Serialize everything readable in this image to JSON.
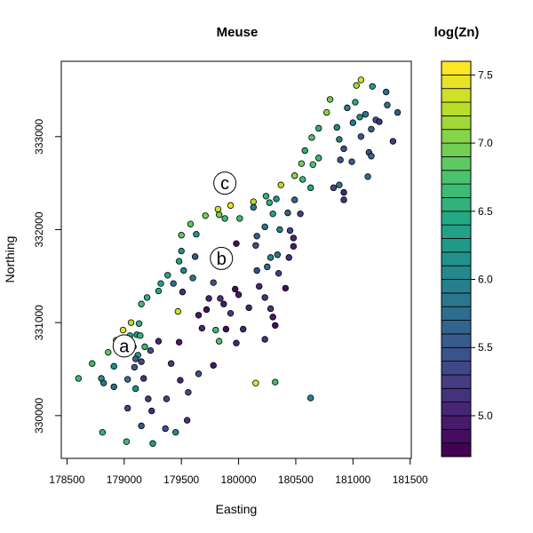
{
  "chart_data": {
    "type": "scatter",
    "title": "Meuse",
    "xlabel": "Easting",
    "ylabel": "Northing",
    "xlim": [
      178450,
      181510
    ],
    "ylim": [
      329540,
      333810
    ],
    "xticks": [
      {
        "value": 178500,
        "label": "178500"
      },
      {
        "value": 179000,
        "label": "179000"
      },
      {
        "value": 179500,
        "label": "179500"
      },
      {
        "value": 180000,
        "label": "180000"
      },
      {
        "value": 180500,
        "label": "180500"
      },
      {
        "value": 181000,
        "label": "181000"
      },
      {
        "value": 181500,
        "label": "181500"
      }
    ],
    "yticks": [
      {
        "value": 330000,
        "label": "330000"
      },
      {
        "value": 331000,
        "label": "331000"
      },
      {
        "value": 332000,
        "label": "332000"
      },
      {
        "value": 333000,
        "label": "333000"
      }
    ],
    "colorbar": {
      "title": "log(Zn)",
      "range": [
        4.7,
        7.6
      ],
      "breaks": [
        4.7,
        4.8,
        4.9,
        5.0,
        5.1,
        5.2,
        5.3,
        5.4,
        5.5,
        5.6,
        5.7,
        5.8,
        5.9,
        6.0,
        6.1,
        6.2,
        6.3,
        6.4,
        6.5,
        6.6,
        6.7,
        6.8,
        6.9,
        7.0,
        7.1,
        7.2,
        7.3,
        7.4,
        7.5,
        7.6
      ],
      "ticks": [
        {
          "value": 5.0,
          "label": "5.0"
        },
        {
          "value": 5.5,
          "label": "5.5"
        },
        {
          "value": 6.0,
          "label": "6.0"
        },
        {
          "value": 6.5,
          "label": "6.5"
        },
        {
          "value": 7.0,
          "label": "7.0"
        },
        {
          "value": 7.5,
          "label": "7.5"
        }
      ]
    },
    "annotations": [
      {
        "text": "a",
        "x": 179000,
        "y": 330750
      },
      {
        "text": "b",
        "x": 179850,
        "y": 331690
      },
      {
        "text": "c",
        "x": 179880,
        "y": 332500
      }
    ],
    "points": [
      {
        "x": 181070,
        "y": 333610,
        "z": 7.3
      },
      {
        "x": 181030,
        "y": 333550,
        "z": 7.1
      },
      {
        "x": 181170,
        "y": 333540,
        "z": 6.2
      },
      {
        "x": 181290,
        "y": 333480,
        "z": 5.7
      },
      {
        "x": 180800,
        "y": 333400,
        "z": 6.9
      },
      {
        "x": 181020,
        "y": 333370,
        "z": 6.4
      },
      {
        "x": 180950,
        "y": 333310,
        "z": 5.9
      },
      {
        "x": 181300,
        "y": 333340,
        "z": 5.8
      },
      {
        "x": 181390,
        "y": 333260,
        "z": 5.5
      },
      {
        "x": 180770,
        "y": 333260,
        "z": 7.0
      },
      {
        "x": 181110,
        "y": 333240,
        "z": 5.8
      },
      {
        "x": 181060,
        "y": 333210,
        "z": 6.0
      },
      {
        "x": 181000,
        "y": 333150,
        "z": 5.8
      },
      {
        "x": 181200,
        "y": 333180,
        "z": 5.4
      },
      {
        "x": 181230,
        "y": 333160,
        "z": 5.1
      },
      {
        "x": 180700,
        "y": 333090,
        "z": 6.5
      },
      {
        "x": 180860,
        "y": 333100,
        "z": 6.0
      },
      {
        "x": 181160,
        "y": 333080,
        "z": 5.6
      },
      {
        "x": 181070,
        "y": 333000,
        "z": 5.5
      },
      {
        "x": 180640,
        "y": 332990,
        "z": 6.7
      },
      {
        "x": 180880,
        "y": 332970,
        "z": 5.9
      },
      {
        "x": 181350,
        "y": 332950,
        "z": 5.2
      },
      {
        "x": 180580,
        "y": 332850,
        "z": 6.5
      },
      {
        "x": 180920,
        "y": 332870,
        "z": 5.4
      },
      {
        "x": 181140,
        "y": 332830,
        "z": 5.4
      },
      {
        "x": 181160,
        "y": 332790,
        "z": 5.6
      },
      {
        "x": 180700,
        "y": 332770,
        "z": 6.6
      },
      {
        "x": 180550,
        "y": 332710,
        "z": 6.9
      },
      {
        "x": 180650,
        "y": 332700,
        "z": 6.7
      },
      {
        "x": 180890,
        "y": 332750,
        "z": 5.5
      },
      {
        "x": 180990,
        "y": 332730,
        "z": 5.5
      },
      {
        "x": 180490,
        "y": 332580,
        "z": 7.0
      },
      {
        "x": 180560,
        "y": 332540,
        "z": 6.6
      },
      {
        "x": 181130,
        "y": 332570,
        "z": 5.7
      },
      {
        "x": 180370,
        "y": 332480,
        "z": 7.2
      },
      {
        "x": 180630,
        "y": 332450,
        "z": 6.4
      },
      {
        "x": 180830,
        "y": 332450,
        "z": 5.3
      },
      {
        "x": 180880,
        "y": 332480,
        "z": 5.8
      },
      {
        "x": 180920,
        "y": 332400,
        "z": 5.0
      },
      {
        "x": 180240,
        "y": 332360,
        "z": 6.5
      },
      {
        "x": 180330,
        "y": 332330,
        "z": 6.1
      },
      {
        "x": 180490,
        "y": 332320,
        "z": 5.6
      },
      {
        "x": 180130,
        "y": 332300,
        "z": 7.2
      },
      {
        "x": 180270,
        "y": 332290,
        "z": 6.5
      },
      {
        "x": 180920,
        "y": 332320,
        "z": 5.1
      },
      {
        "x": 179930,
        "y": 332260,
        "z": 7.4
      },
      {
        "x": 180130,
        "y": 332240,
        "z": 5.9
      },
      {
        "x": 179820,
        "y": 332220,
        "z": 7.3
      },
      {
        "x": 180430,
        "y": 332180,
        "z": 5.6
      },
      {
        "x": 180300,
        "y": 332170,
        "z": 6.3
      },
      {
        "x": 179830,
        "y": 332160,
        "z": 6.9
      },
      {
        "x": 179880,
        "y": 332120,
        "z": 6.6
      },
      {
        "x": 179710,
        "y": 332150,
        "z": 6.9
      },
      {
        "x": 180010,
        "y": 332120,
        "z": 6.6
      },
      {
        "x": 180540,
        "y": 332170,
        "z": 5.2
      },
      {
        "x": 179580,
        "y": 332060,
        "z": 6.8
      },
      {
        "x": 180230,
        "y": 332030,
        "z": 5.8
      },
      {
        "x": 180360,
        "y": 332000,
        "z": 5.9
      },
      {
        "x": 180450,
        "y": 331990,
        "z": 5.3
      },
      {
        "x": 179500,
        "y": 331940,
        "z": 6.8
      },
      {
        "x": 179630,
        "y": 331950,
        "z": 6.1
      },
      {
        "x": 180160,
        "y": 331930,
        "z": 5.5
      },
      {
        "x": 180480,
        "y": 331910,
        "z": 5.0
      },
      {
        "x": 179980,
        "y": 331850,
        "z": 4.8
      },
      {
        "x": 180480,
        "y": 331820,
        "z": 4.9
      },
      {
        "x": 180150,
        "y": 331830,
        "z": 5.4
      },
      {
        "x": 179500,
        "y": 331770,
        "z": 6.1
      },
      {
        "x": 179620,
        "y": 331710,
        "z": 5.5
      },
      {
        "x": 180280,
        "y": 331700,
        "z": 6.0
      },
      {
        "x": 180340,
        "y": 331730,
        "z": 5.8
      },
      {
        "x": 180440,
        "y": 331700,
        "z": 5.1
      },
      {
        "x": 179480,
        "y": 331660,
        "z": 6.3
      },
      {
        "x": 179520,
        "y": 331560,
        "z": 6.0
      },
      {
        "x": 180160,
        "y": 331560,
        "z": 5.3
      },
      {
        "x": 180250,
        "y": 331600,
        "z": 5.7
      },
      {
        "x": 179380,
        "y": 331510,
        "z": 6.4
      },
      {
        "x": 179600,
        "y": 331480,
        "z": 5.8
      },
      {
        "x": 180350,
        "y": 331530,
        "z": 5.2
      },
      {
        "x": 179320,
        "y": 331420,
        "z": 6.3
      },
      {
        "x": 179430,
        "y": 331420,
        "z": 5.7
      },
      {
        "x": 179780,
        "y": 331430,
        "z": 5.4
      },
      {
        "x": 179300,
        "y": 331340,
        "z": 6.4
      },
      {
        "x": 179510,
        "y": 331330,
        "z": 5.1
      },
      {
        "x": 179970,
        "y": 331360,
        "z": 4.8
      },
      {
        "x": 180180,
        "y": 331390,
        "z": 5.0
      },
      {
        "x": 180410,
        "y": 331370,
        "z": 4.8
      },
      {
        "x": 179200,
        "y": 331270,
        "z": 6.5
      },
      {
        "x": 179740,
        "y": 331260,
        "z": 5.0
      },
      {
        "x": 179840,
        "y": 331260,
        "z": 5.1
      },
      {
        "x": 180000,
        "y": 331300,
        "z": 4.9
      },
      {
        "x": 180230,
        "y": 331270,
        "z": 5.1
      },
      {
        "x": 179150,
        "y": 331200,
        "z": 6.6
      },
      {
        "x": 179870,
        "y": 331200,
        "z": 4.9
      },
      {
        "x": 179470,
        "y": 331120,
        "z": 7.3
      },
      {
        "x": 179720,
        "y": 331140,
        "z": 4.8
      },
      {
        "x": 180090,
        "y": 331160,
        "z": 5.0
      },
      {
        "x": 180280,
        "y": 331150,
        "z": 5.1
      },
      {
        "x": 179650,
        "y": 331080,
        "z": 4.9
      },
      {
        "x": 179930,
        "y": 331100,
        "z": 5.2
      },
      {
        "x": 179060,
        "y": 331000,
        "z": 7.2
      },
      {
        "x": 179130,
        "y": 330990,
        "z": 6.5
      },
      {
        "x": 180300,
        "y": 331060,
        "z": 4.9
      },
      {
        "x": 178990,
        "y": 330920,
        "z": 7.4
      },
      {
        "x": 179680,
        "y": 330940,
        "z": 5.0
      },
      {
        "x": 179800,
        "y": 330920,
        "z": 6.6
      },
      {
        "x": 179890,
        "y": 330930,
        "z": 4.8
      },
      {
        "x": 180040,
        "y": 330930,
        "z": 5.0
      },
      {
        "x": 180320,
        "y": 330970,
        "z": 4.8
      },
      {
        "x": 179050,
        "y": 330860,
        "z": 6.4
      },
      {
        "x": 179110,
        "y": 330870,
        "z": 6.2
      },
      {
        "x": 179140,
        "y": 330860,
        "z": 6.5
      },
      {
        "x": 180230,
        "y": 330820,
        "z": 5.1
      },
      {
        "x": 178930,
        "y": 330810,
        "z": 7.2
      },
      {
        "x": 179300,
        "y": 330800,
        "z": 5.0
      },
      {
        "x": 179480,
        "y": 330790,
        "z": 4.9
      },
      {
        "x": 179830,
        "y": 330800,
        "z": 6.7
      },
      {
        "x": 179980,
        "y": 330780,
        "z": 5.0
      },
      {
        "x": 179080,
        "y": 330740,
        "z": 6.1
      },
      {
        "x": 179180,
        "y": 330740,
        "z": 6.6
      },
      {
        "x": 179230,
        "y": 330700,
        "z": 5.4
      },
      {
        "x": 178860,
        "y": 330680,
        "z": 6.8
      },
      {
        "x": 179040,
        "y": 330690,
        "z": 6.6
      },
      {
        "x": 179120,
        "y": 330650,
        "z": 6.3
      },
      {
        "x": 179100,
        "y": 330610,
        "z": 5.6
      },
      {
        "x": 178720,
        "y": 330560,
        "z": 6.6
      },
      {
        "x": 179150,
        "y": 330580,
        "z": 5.3
      },
      {
        "x": 179410,
        "y": 330560,
        "z": 5.2
      },
      {
        "x": 179780,
        "y": 330540,
        "z": 4.9
      },
      {
        "x": 178910,
        "y": 330530,
        "z": 6.1
      },
      {
        "x": 179090,
        "y": 330520,
        "z": 5.5
      },
      {
        "x": 179650,
        "y": 330450,
        "z": 5.4
      },
      {
        "x": 178600,
        "y": 330400,
        "z": 6.6
      },
      {
        "x": 178800,
        "y": 330400,
        "z": 6.1
      },
      {
        "x": 179030,
        "y": 330390,
        "z": 5.8
      },
      {
        "x": 179170,
        "y": 330400,
        "z": 5.1
      },
      {
        "x": 179490,
        "y": 330380,
        "z": 5.0
      },
      {
        "x": 180150,
        "y": 330350,
        "z": 7.4
      },
      {
        "x": 180320,
        "y": 330360,
        "z": 6.6
      },
      {
        "x": 178820,
        "y": 330350,
        "z": 5.8
      },
      {
        "x": 178910,
        "y": 330310,
        "z": 5.7
      },
      {
        "x": 179100,
        "y": 330290,
        "z": 6.1
      },
      {
        "x": 179560,
        "y": 330250,
        "z": 5.3
      },
      {
        "x": 179210,
        "y": 330180,
        "z": 5.2
      },
      {
        "x": 179370,
        "y": 330180,
        "z": 5.3
      },
      {
        "x": 180630,
        "y": 330190,
        "z": 5.9
      },
      {
        "x": 179030,
        "y": 330080,
        "z": 5.3
      },
      {
        "x": 179240,
        "y": 330050,
        "z": 5.1
      },
      {
        "x": 179550,
        "y": 329950,
        "z": 5.1
      },
      {
        "x": 179150,
        "y": 329890,
        "z": 5.5
      },
      {
        "x": 179360,
        "y": 329860,
        "z": 5.4
      },
      {
        "x": 178810,
        "y": 329820,
        "z": 6.5
      },
      {
        "x": 179450,
        "y": 329820,
        "z": 6.0
      },
      {
        "x": 179020,
        "y": 329720,
        "z": 6.6
      },
      {
        "x": 179250,
        "y": 329700,
        "z": 6.3
      }
    ]
  }
}
